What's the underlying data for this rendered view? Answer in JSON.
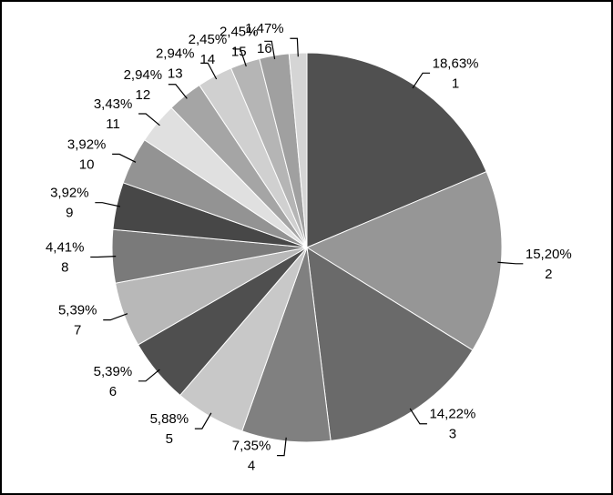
{
  "chart_data": {
    "type": "pie",
    "categories": [
      "1",
      "2",
      "3",
      "4",
      "5",
      "6",
      "7",
      "8",
      "9",
      "10",
      "11",
      "12",
      "13",
      "14",
      "15",
      "16"
    ],
    "values": [
      18.63,
      15.2,
      14.22,
      7.35,
      5.88,
      5.39,
      5.39,
      4.41,
      3.92,
      3.92,
      3.43,
      2.94,
      2.94,
      2.45,
      2.45,
      1.47
    ],
    "value_labels": [
      "18,63%",
      "15,20%",
      "14,22%",
      "7,35%",
      "5,88%",
      "5,39%",
      "5,39%",
      "4,41%",
      "3,92%",
      "3,92%",
      "3,43%",
      "2,94%",
      "2,94%",
      "2,45%",
      "2,45%",
      "1,47%"
    ],
    "colors": [
      "#505050",
      "#969696",
      "#6a6a6a",
      "#808080",
      "#c8c8c8",
      "#4f4f4f",
      "#b8b8b8",
      "#7a7a7a",
      "#474747",
      "#939393",
      "#e0e0e0",
      "#a5a5a5",
      "#d0d0d0",
      "#b5b5b5",
      "#a0a0a0",
      "#d5d5d5"
    ]
  }
}
